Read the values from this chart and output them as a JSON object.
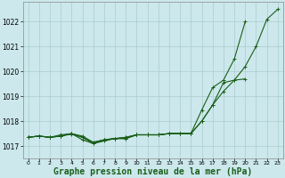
{
  "bg_color": "#cce8ec",
  "grid_color": "#aacccc",
  "line_color": "#1a5e1a",
  "marker_color": "#1a5e1a",
  "xlabel": "Graphe pression niveau de la mer (hPa)",
  "xlabel_fontsize": 7.0,
  "xlim": [
    -0.5,
    23.5
  ],
  "ylim": [
    1016.5,
    1022.8
  ],
  "yticks": [
    1017,
    1018,
    1019,
    1020,
    1021,
    1022
  ],
  "xticks": [
    0,
    1,
    2,
    3,
    4,
    5,
    6,
    7,
    8,
    9,
    10,
    11,
    12,
    13,
    14,
    15,
    16,
    17,
    18,
    19,
    20,
    21,
    22,
    23
  ],
  "series1": [
    1017.35,
    1017.4,
    1017.35,
    1017.4,
    1017.5,
    1017.35,
    1017.1,
    1017.25,
    1017.3,
    1017.3,
    1017.45,
    1017.45,
    1017.45,
    1017.5,
    1017.5,
    1017.5,
    1018.0,
    1018.65,
    1019.55,
    1019.65,
    1020.2,
    1021.0,
    1022.1,
    1022.5
  ],
  "series2": [
    1017.35,
    1017.4,
    1017.35,
    1017.4,
    1017.5,
    1017.25,
    1017.1,
    1017.2,
    1017.3,
    1017.3,
    1017.45,
    1017.45,
    1017.45,
    1017.5,
    1017.5,
    1017.5,
    1018.45,
    1019.35,
    1019.65,
    1020.5,
    1022.0,
    null,
    null,
    null
  ],
  "series3": [
    1017.35,
    1017.4,
    1017.35,
    1017.4,
    1017.48,
    1017.35,
    1017.15,
    1017.25,
    1017.3,
    1017.35,
    1017.45,
    1017.45,
    1017.45,
    1017.5,
    1017.5,
    1017.5,
    1018.0,
    1018.65,
    1019.2,
    1019.65,
    1019.7,
    null,
    null,
    null
  ],
  "series4": [
    1017.35,
    1017.4,
    1017.35,
    1017.45,
    1017.5,
    1017.4,
    1017.15,
    1017.25,
    1017.3,
    1017.35,
    1017.45,
    1017.45,
    1017.45,
    1017.5,
    1017.5,
    1017.5,
    null,
    null,
    null,
    null,
    null,
    null,
    null,
    null
  ]
}
